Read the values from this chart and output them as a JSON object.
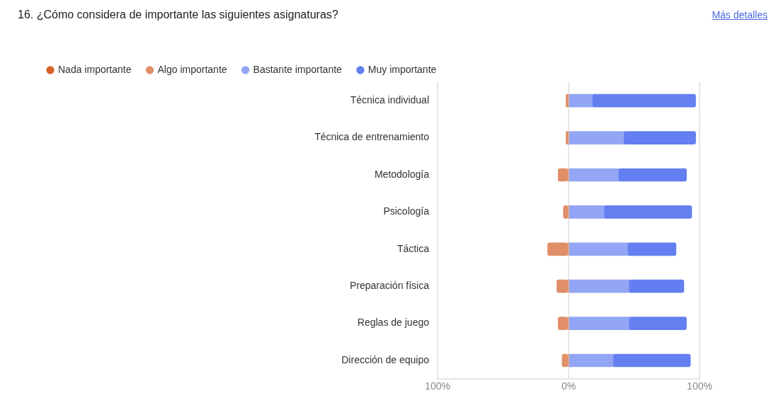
{
  "chart_data": {
    "type": "bar",
    "orientation": "horizontal",
    "stacked": true,
    "title": "16. ¿Cómo considera de importante las siguientes asignaturas?",
    "annotations": [
      "Más detalles"
    ],
    "categories": [
      "Técnica individual",
      "Técnica de entrenamiento",
      "Metodología",
      "Psicología",
      "Táctica",
      "Preparación física",
      "Reglas de juego",
      "Dirección de equipo"
    ],
    "series": [
      {
        "name": "Nada importante",
        "color": "#d4622b",
        "values": [
          0,
          0,
          0,
          0,
          0,
          0,
          0,
          0
        ]
      },
      {
        "name": "Algo importante",
        "color": "#e08f68",
        "values": [
          -2,
          -2,
          -8,
          -4,
          -16,
          -9,
          -8,
          -5
        ]
      },
      {
        "name": "Bastante importante",
        "color": "#93a5f5",
        "values": [
          18,
          42,
          38,
          27,
          45,
          46,
          46,
          34
        ]
      },
      {
        "name": "Muy importante",
        "color": "#647ff0",
        "values": [
          79,
          55,
          52,
          67,
          37,
          42,
          44,
          59
        ]
      }
    ],
    "xlim": [
      -100,
      100
    ],
    "xticks": [
      {
        "value": -100,
        "label": "100%"
      },
      {
        "value": 0,
        "label": "0%"
      },
      {
        "value": 100,
        "label": "100%"
      }
    ],
    "grid": "x",
    "legend": "top left"
  }
}
